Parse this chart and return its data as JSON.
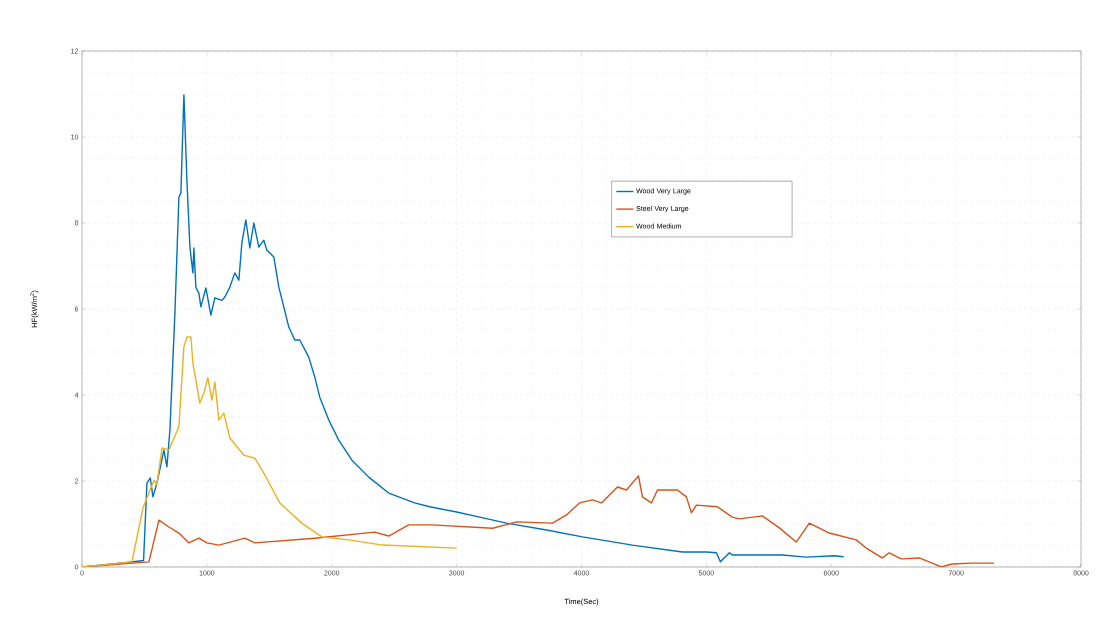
{
  "chart_data": {
    "type": "line",
    "xlabel": "Time(Sec)",
    "ylabel": "HF(kW/m$^{2}$)",
    "xlim": [
      0,
      8000
    ],
    "ylim": [
      0,
      12
    ],
    "xticks": [
      0,
      1000,
      2000,
      3000,
      4000,
      5000,
      6000,
      7000,
      8000
    ],
    "yticks": [
      0,
      2,
      4,
      6,
      8,
      10,
      12
    ],
    "grid": true,
    "legend": "top right",
    "marker": "none",
    "line_style": "solid",
    "series": [
      {
        "name": "Wood Very Large",
        "color": "#0072bd",
        "x": [
          0,
          344,
          493,
          520,
          547,
          568,
          600,
          656,
          680,
          704,
          744,
          776,
          792,
          816,
          840,
          864,
          888,
          896,
          912,
          936,
          952,
          992,
          1032,
          1064,
          1120,
          1144,
          1184,
          1224,
          1256,
          1280,
          1312,
          1344,
          1376,
          1416,
          1456,
          1480,
          1536,
          1576,
          1616,
          1656,
          1704,
          1744,
          1816,
          1864,
          1904,
          1976,
          2056,
          2160,
          2296,
          2456,
          2664,
          2784,
          3000,
          3184,
          3400,
          3720,
          4008,
          4408,
          4808,
          5000,
          5080,
          5112,
          5184,
          5208,
          5608,
          5800,
          6024,
          6100
        ],
        "values": [
          0,
          0.1,
          0.15,
          1.95,
          2.07,
          1.63,
          1.95,
          2.72,
          2.33,
          3.19,
          5.9,
          8.6,
          8.7,
          10.98,
          9.0,
          7.44,
          6.84,
          7.42,
          6.5,
          6.37,
          6.05,
          6.49,
          5.86,
          6.26,
          6.2,
          6.28,
          6.51,
          6.84,
          6.67,
          7.53,
          8.07,
          7.42,
          8.0,
          7.44,
          7.6,
          7.37,
          7.21,
          6.51,
          6.05,
          5.58,
          5.28,
          5.28,
          4.88,
          4.42,
          3.95,
          3.42,
          2.95,
          2.49,
          2.09,
          1.72,
          1.49,
          1.4,
          1.28,
          1.16,
          1.02,
          0.86,
          0.7,
          0.51,
          0.35,
          0.35,
          0.33,
          0.12,
          0.33,
          0.28,
          0.28,
          0.23,
          0.26,
          0.24
        ]
      },
      {
        "name": "Steel Very Large",
        "color": "#d95319",
        "x": [
          0,
          536,
          616,
          696,
          776,
          856,
          936,
          1000,
          1096,
          1304,
          1384,
          1864,
          2344,
          2456,
          2616,
          2800,
          3288,
          3480,
          3768,
          3880,
          3984,
          4088,
          4160,
          4288,
          4360,
          4456,
          4488,
          4560,
          4608,
          4768,
          4840,
          4880,
          4920,
          5088,
          5208,
          5264,
          5448,
          5584,
          5720,
          5824,
          5984,
          6200,
          6280,
          6408,
          6464,
          6560,
          6704,
          6808,
          6880,
          6968,
          7128,
          7304
        ],
        "values": [
          0,
          0.12,
          1.09,
          0.93,
          0.79,
          0.56,
          0.67,
          0.56,
          0.51,
          0.67,
          0.56,
          0.67,
          0.81,
          0.72,
          0.98,
          0.98,
          0.9,
          1.05,
          1.02,
          1.21,
          1.49,
          1.56,
          1.49,
          1.86,
          1.79,
          2.12,
          1.63,
          1.49,
          1.79,
          1.79,
          1.63,
          1.26,
          1.44,
          1.4,
          1.16,
          1.12,
          1.19,
          0.91,
          0.58,
          1.02,
          0.79,
          0.63,
          0.44,
          0.21,
          0.33,
          0.19,
          0.21,
          0.09,
          0.0,
          0.07,
          0.09,
          0.09
        ]
      },
      {
        "name": "Wood Medium",
        "color": "#edb120",
        "x": [
          0,
          400,
          488,
          576,
          600,
          640,
          696,
          776,
          816,
          840,
          872,
          888,
          944,
          976,
          1008,
          1040,
          1064,
          1096,
          1136,
          1184,
          1296,
          1384,
          1464,
          1584,
          1760,
          1920,
          2136,
          2408,
          3000
        ],
        "values": [
          0,
          0.12,
          1.37,
          2.02,
          1.91,
          2.77,
          2.72,
          3.26,
          5.12,
          5.35,
          5.35,
          4.74,
          3.81,
          4.05,
          4.4,
          3.88,
          4.3,
          3.42,
          3.58,
          3.0,
          2.6,
          2.53,
          2.14,
          1.49,
          1.02,
          0.7,
          0.63,
          0.51,
          0.44
        ]
      }
    ]
  }
}
